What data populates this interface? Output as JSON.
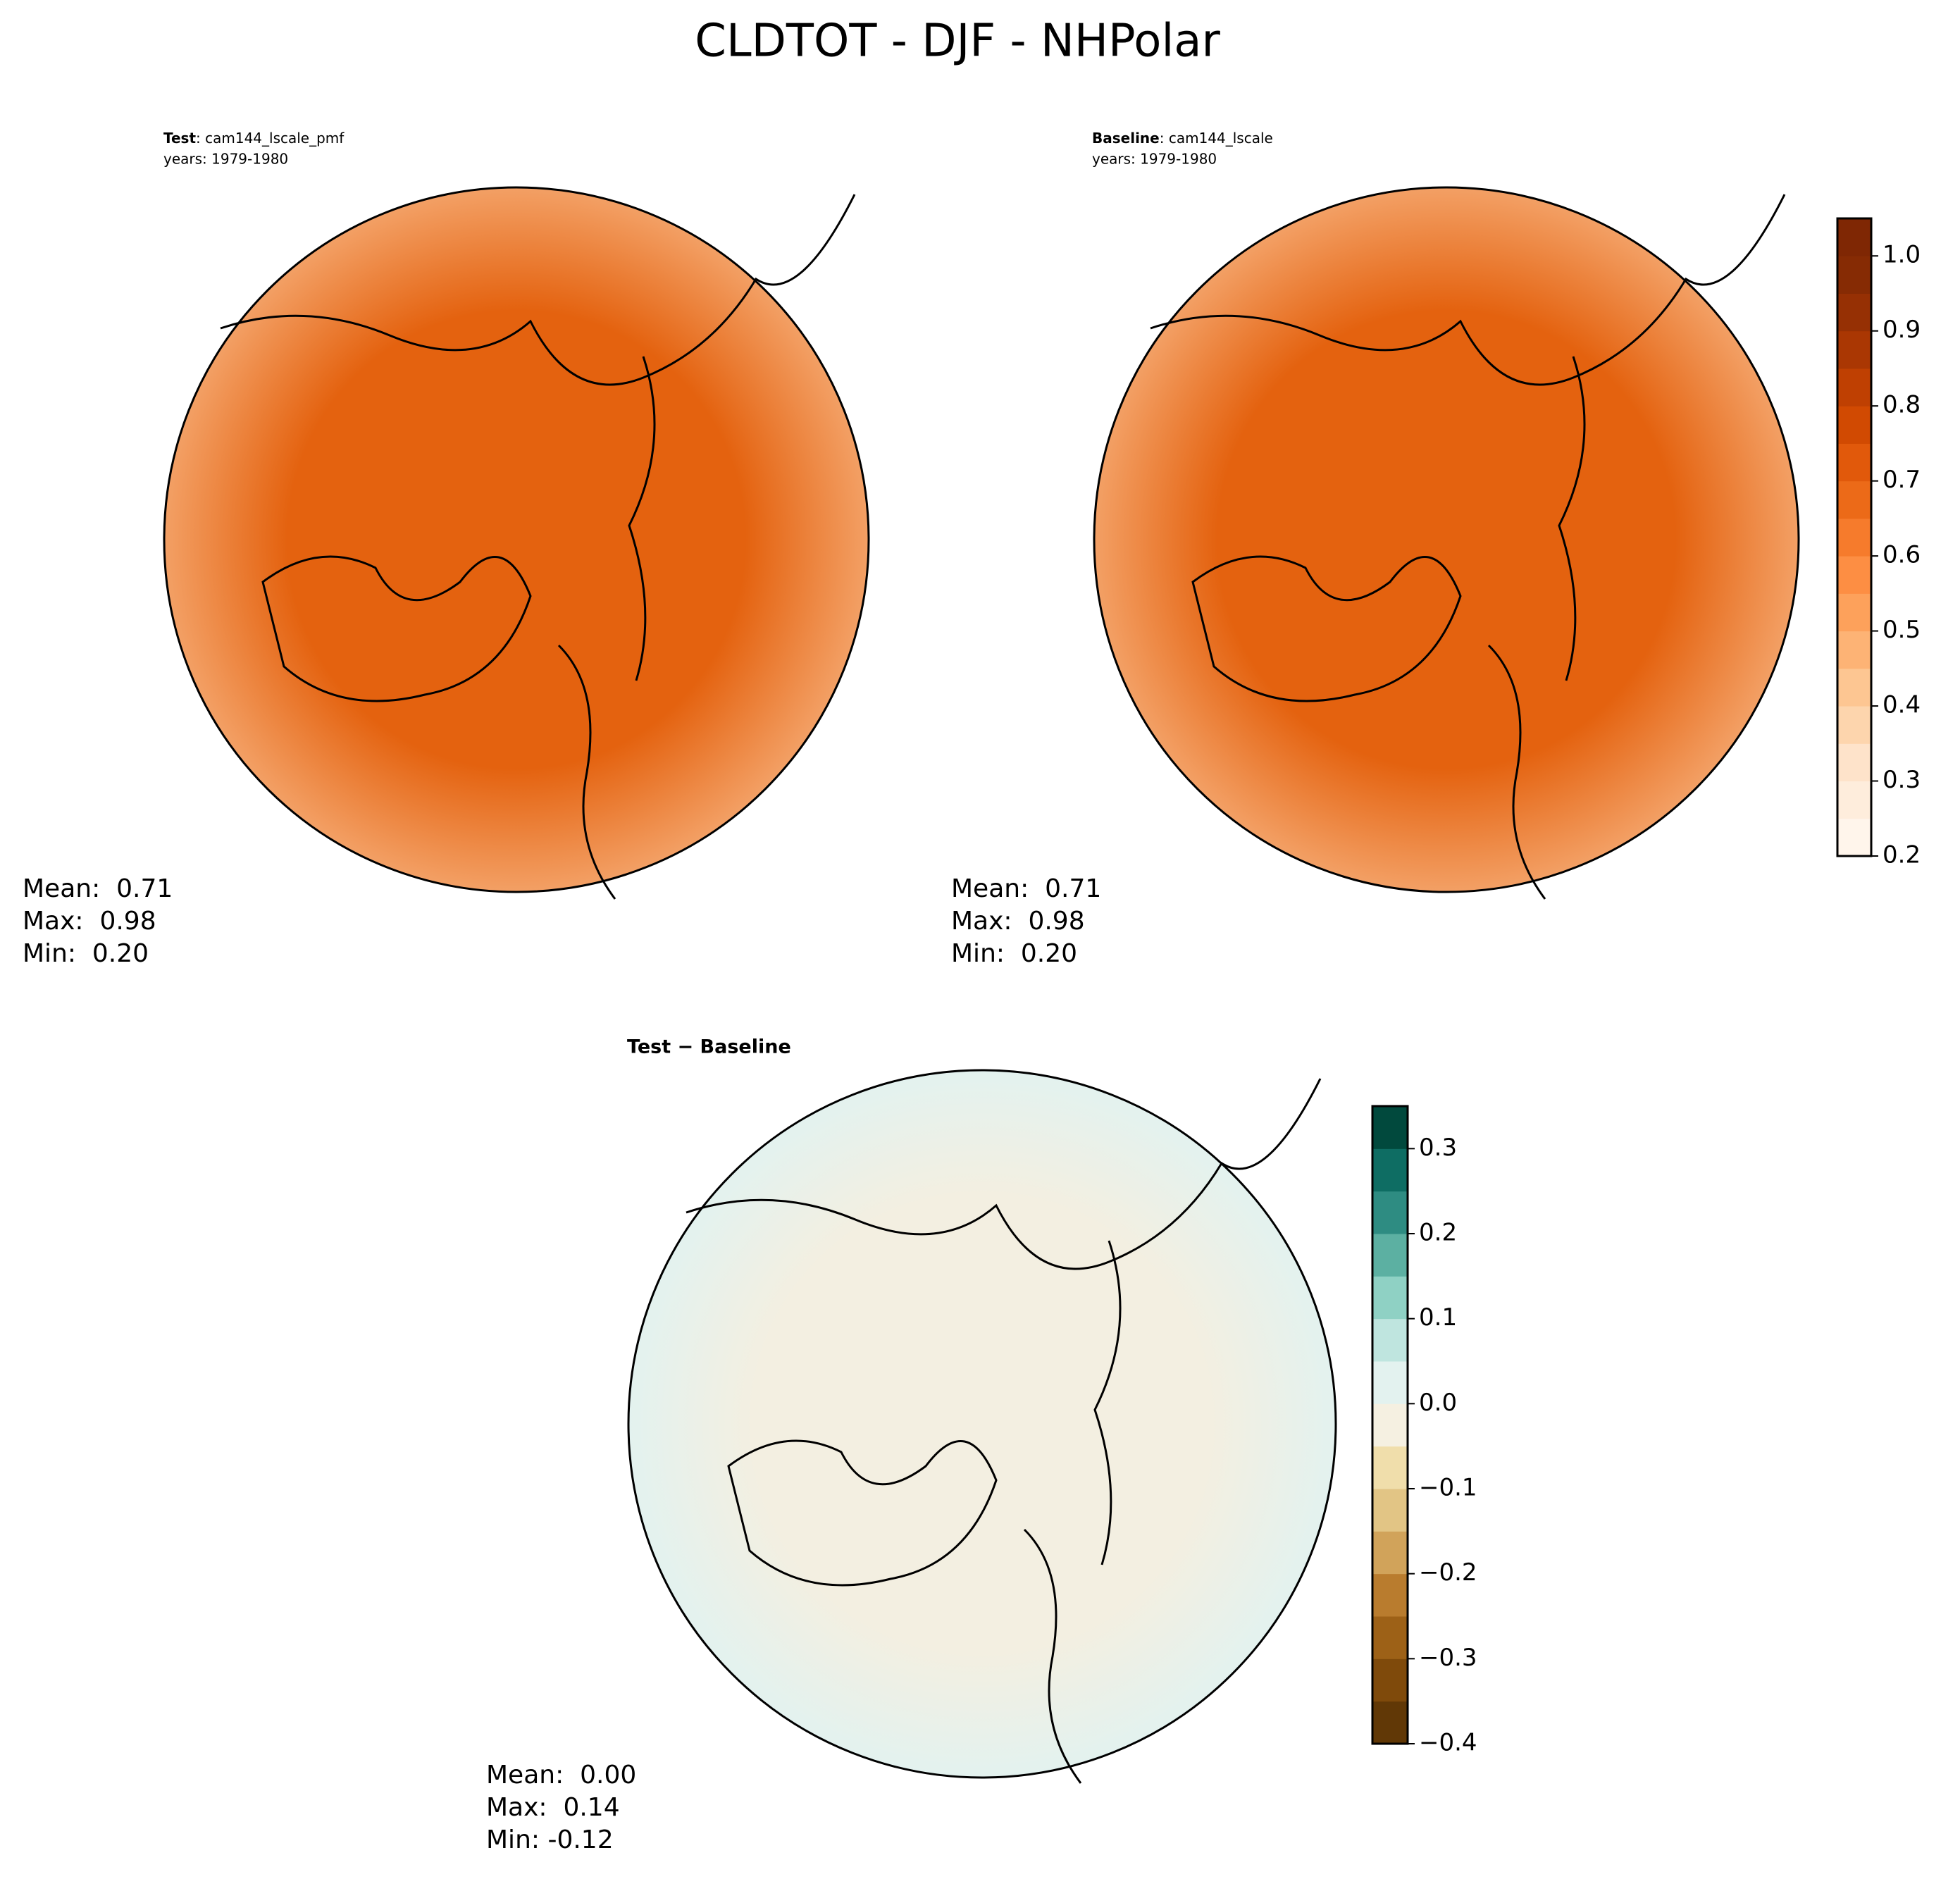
{
  "title": "CLDTOT - DJF - NHPolar",
  "panels": [
    {
      "name": "Test",
      "case": ": cam144_lscale_pmf",
      "years": "years: 1979-1980",
      "stats": [
        "Mean:  0.71",
        "Max:  0.98",
        "Min:  0.20"
      ],
      "fill": "#e4620f",
      "edge": "#f3a065"
    },
    {
      "name": "Baseline",
      "case": ": cam144_lscale",
      "years": "years: 1979-1980",
      "stats": [
        "Mean:  0.71",
        "Max:  0.98",
        "Min:  0.20"
      ],
      "fill": "#e4620f",
      "edge": "#f3a065"
    },
    {
      "name": "Test − Baseline",
      "stats": [
        "Mean:  0.00",
        "Max:  0.14",
        "Min: -0.12"
      ],
      "fill": "#f3efe1",
      "edge": "#e3f2ef"
    }
  ],
  "colorbars": [
    {
      "lim": [
        0.2,
        1.05
      ],
      "levels": [
        0.2,
        0.25,
        0.3,
        0.35,
        0.4,
        0.45,
        0.5,
        0.55,
        0.6,
        0.65,
        0.7,
        0.75,
        0.8,
        0.85,
        0.9,
        0.95,
        1.0,
        1.05
      ],
      "colors": [
        "#fff5eb",
        "#feeddc",
        "#fee3ca",
        "#fdd5ad",
        "#fdc692",
        "#fdb375",
        "#fda15b",
        "#fd8e43",
        "#f67b2c",
        "#ec6a18",
        "#e1590b",
        "#d14a02",
        "#bf4002",
        "#aa3703",
        "#963004",
        "#862b04",
        "#7f2704"
      ],
      "ticks": [
        0.2,
        0.3,
        0.4,
        0.5,
        0.6,
        0.7,
        0.8,
        0.9,
        {
          "value": 1,
          "label": "1.0"
        }
      ]
    },
    {
      "lim": [
        -0.4,
        0.35
      ],
      "levels": [
        -0.4,
        -0.35,
        -0.3,
        -0.25,
        -0.2,
        -0.15,
        -0.1,
        -0.05,
        0,
        0.05,
        0.1,
        0.15,
        0.2,
        0.25,
        0.3,
        0.35
      ],
      "colors": [
        "#613806",
        "#7f4a0b",
        "#9d6117",
        "#b97c2e",
        "#d1a35a",
        "#e2c585",
        "#f0deab",
        "#f5f0e1",
        "#e3f2ef",
        "#bfe5df",
        "#8fd1c4",
        "#5cb0a2",
        "#2e8c82",
        "#0e6d63",
        "#01493d"
      ],
      "ticks": [
        {
          "value": -0.4,
          "label": "−0.4"
        },
        {
          "value": -0.3,
          "label": "−0.3"
        },
        {
          "value": -0.2,
          "label": "−0.2"
        },
        {
          "value": -0.1,
          "label": "−0.1"
        },
        {
          "value": 0,
          "label": "0.0"
        },
        0.1,
        0.2,
        0.3
      ]
    }
  ]
}
